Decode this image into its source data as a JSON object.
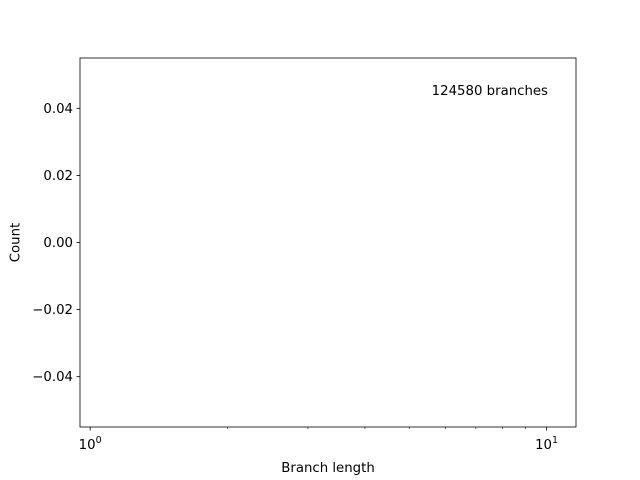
{
  "chart_data": {
    "type": "bar",
    "title": "",
    "xlabel": "Branch length",
    "ylabel": "Count",
    "xscale": "log",
    "xlim": [
      0.95,
      11.6
    ],
    "ylim": [
      -0.055,
      0.055
    ],
    "x_major_ticks": [
      {
        "value": 1,
        "label_base": "10",
        "label_exp": "0"
      },
      {
        "value": 10,
        "label_base": "10",
        "label_exp": "1"
      }
    ],
    "x_minor_ticks": [
      2,
      3,
      4,
      5,
      6,
      7,
      8,
      9
    ],
    "y_ticks": [
      {
        "value": 0.04,
        "label": "0.04"
      },
      {
        "value": 0.02,
        "label": "0.02"
      },
      {
        "value": 0.0,
        "label": "0.00"
      },
      {
        "value": -0.02,
        "label": "−0.02"
      },
      {
        "value": -0.04,
        "label": "−0.04"
      }
    ],
    "annotation": "124580 branches",
    "annotation_position": "top-right",
    "series": [],
    "grid": false,
    "legend": false
  }
}
